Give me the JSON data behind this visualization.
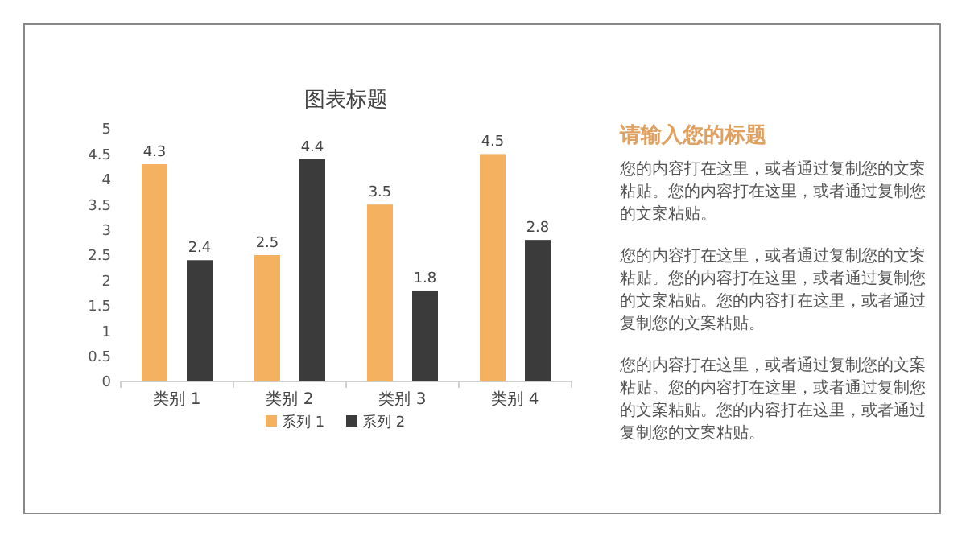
{
  "chart_data": [
    {
      "type": "bar",
      "title": "图表标题",
      "categories": [
        "类别 1",
        "类别 2",
        "类别 3",
        "类别 4"
      ],
      "series": [
        {
          "name": "系列 1",
          "color": "#f4b15f",
          "values": [
            4.3,
            2.5,
            3.5,
            4.5
          ]
        },
        {
          "name": "系列 2",
          "color": "#3b3b3b",
          "values": [
            2.4,
            4.4,
            1.8,
            2.8
          ]
        }
      ],
      "ylim": [
        0,
        5
      ],
      "yticks": [
        0,
        0.5,
        1,
        1.5,
        2,
        2.5,
        3,
        3.5,
        4,
        4.5,
        5
      ],
      "data_labels": true,
      "legend": "bottom"
    },
    {
      "type": "other",
      "title": "请输入您的标题",
      "annotations": [
        "您的内容打在这里，或者通过复制您的文案粘贴。您的内容打在这里，或者通过复制您的文案粘贴。",
        "您的内容打在这里，或者通过复制您的文案粘贴。您的内容打在这里，或者通过复制您的文案粘贴。您的内容打在这里，或者通过复制您的文案粘贴。",
        "您的内容打在这里，或者通过复制您的文案粘贴。您的内容打在这里，或者通过复制您的文案粘贴。您的内容打在这里，或者通过复制您的文案粘贴。"
      ]
    }
  ]
}
